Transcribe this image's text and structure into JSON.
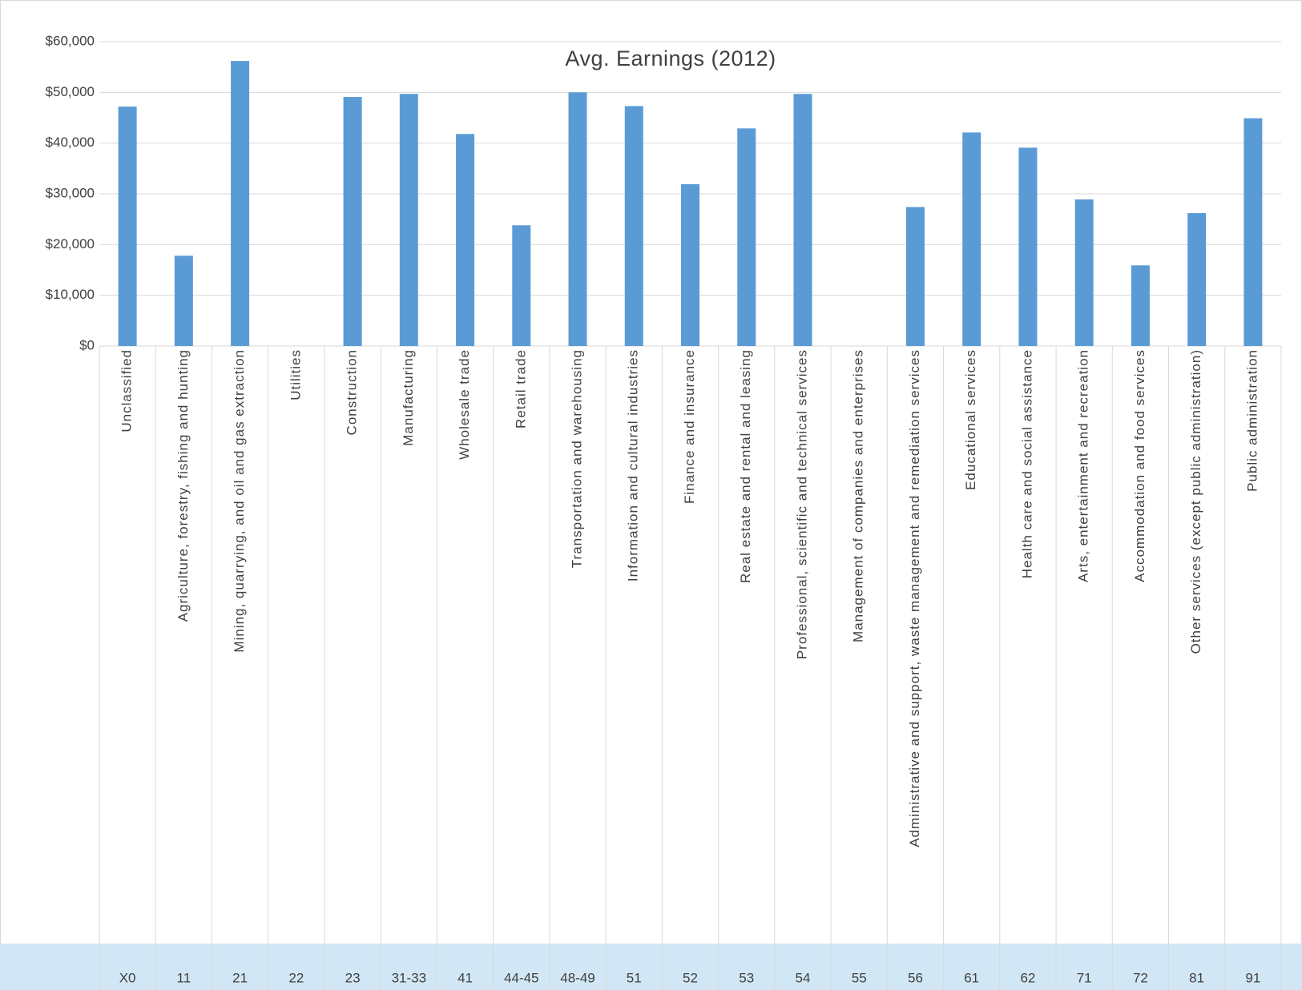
{
  "chart_data": {
    "type": "bar",
    "title": "Avg. Earnings (2012)",
    "categories": [
      "Unclassified",
      "Agriculture, forestry, fishing and hunting",
      "Mining, quarrying, and oil and gas extraction",
      "Utilities",
      "Construction",
      "Manufacturing",
      "Wholesale trade",
      "Retail trade",
      "Transportation and warehousing",
      "Information and cultural industries",
      "Finance and insurance",
      "Real estate and rental and leasing",
      "Professional, scientific and technical services",
      "Management of companies and enterprises",
      "Administrative and support, waste management and remediation services",
      "Educational services",
      "Health care and social assistance",
      "Arts, entertainment and recreation",
      "Accommodation and food services",
      "Other services (except public administration)",
      "Public administration"
    ],
    "codes": [
      "X0",
      "11",
      "21",
      "22",
      "23",
      "31-33",
      "41",
      "44-45",
      "48-49",
      "51",
      "52",
      "53",
      "54",
      "55",
      "56",
      "61",
      "62",
      "71",
      "72",
      "81",
      "91"
    ],
    "values": [
      47200,
      17800,
      56200,
      null,
      49100,
      49700,
      41800,
      23800,
      50000,
      47300,
      31900,
      42900,
      49700,
      null,
      27400,
      42100,
      39100,
      28900,
      15900,
      26200,
      44900
    ],
    "color": "#5b9bd5",
    "ylim": [
      0,
      60000
    ],
    "yticks": [
      {
        "value": 0,
        "label": "$0"
      },
      {
        "value": 10000,
        "label": "$10,000"
      },
      {
        "value": 20000,
        "label": "$20,000"
      },
      {
        "value": 30000,
        "label": "$30,000"
      },
      {
        "value": 40000,
        "label": "$40,000"
      },
      {
        "value": 50000,
        "label": "$50,000"
      },
      {
        "value": 60000,
        "label": "$60,000"
      }
    ],
    "grid": true
  }
}
